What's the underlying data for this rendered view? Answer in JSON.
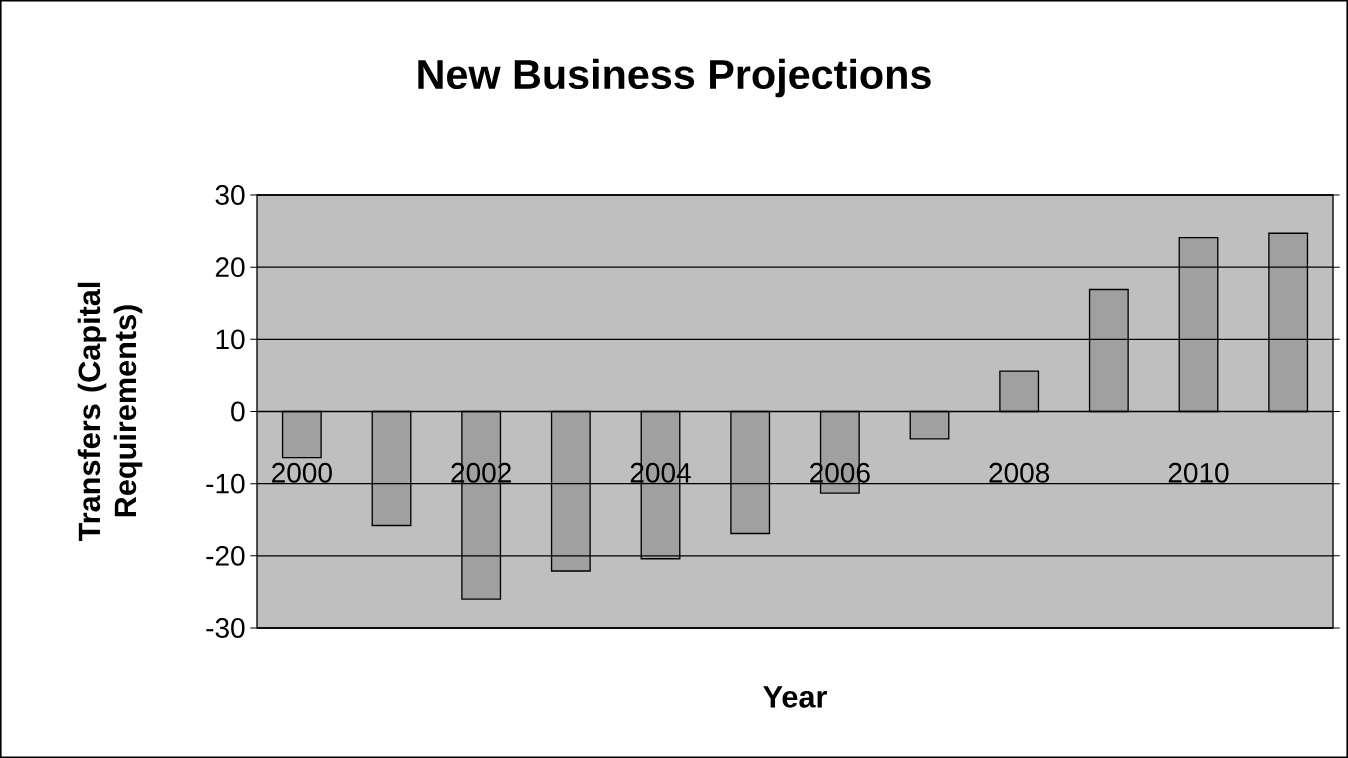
{
  "chart_data": {
    "type": "bar",
    "title": "New Business Projections",
    "xlabel": "Year",
    "ylabel": "Transfers (Capital Requirements)",
    "categories": [
      "2000",
      null,
      "2002",
      null,
      "2004",
      null,
      "2006",
      null,
      "2008",
      null,
      "2010",
      null
    ],
    "values": [
      -6.4,
      -15.8,
      -26.0,
      -22.1,
      -20.4,
      -16.9,
      -11.3,
      -3.8,
      5.6,
      16.9,
      24.1,
      24.7
    ],
    "color": "#a0a0a0",
    "ylim": [
      -30,
      30
    ],
    "yticks": [
      -30,
      -20,
      -10,
      0,
      10,
      20,
      30
    ],
    "grid": "y"
  }
}
